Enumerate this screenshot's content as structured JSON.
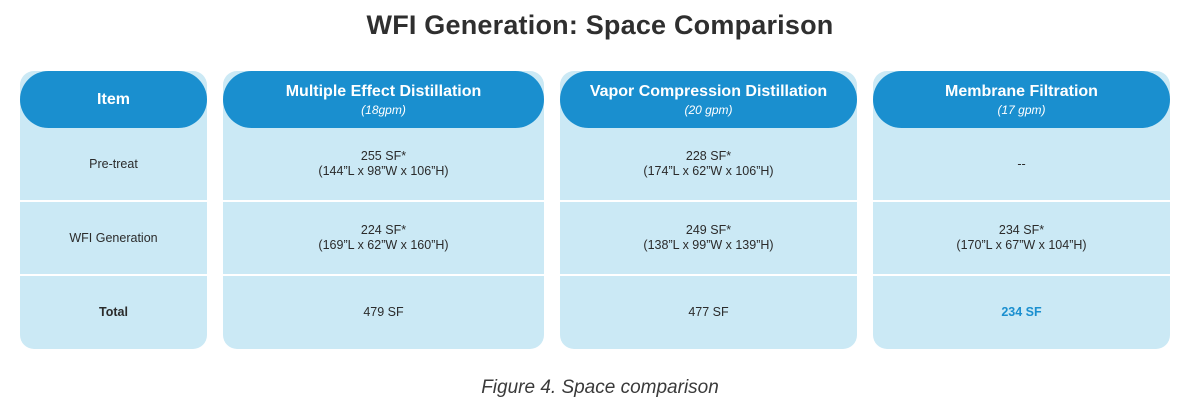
{
  "title": "WFI Generation: Space Comparison",
  "caption": "Figure 4. Space comparison",
  "item_column": {
    "header": "Item",
    "rows": [
      "Pre-treat",
      "WFI Generation",
      "Total"
    ]
  },
  "columns": [
    {
      "name": "Multiple Effect Distillation",
      "sub": "(18gpm)",
      "pretreat": {
        "area": "255 SF*",
        "dims": "(144”L x 98”W x 106”H)"
      },
      "wfi": {
        "area": "224 SF*",
        "dims": "(169”L x 62”W x 160”H)"
      },
      "total": "479 SF"
    },
    {
      "name": "Vapor Compression Distillation",
      "sub": "(20 gpm)",
      "pretreat": {
        "area": "228 SF*",
        "dims": "(174”L x 62”W x 106”H)"
      },
      "wfi": {
        "area": "249 SF*",
        "dims": "(138”L x 99”W x 139”H)"
      },
      "total": "477 SF"
    },
    {
      "name": "Membrane Filtration",
      "sub": "(17 gpm)",
      "pretreat": {
        "area": "--",
        "dims": ""
      },
      "wfi": {
        "area": "234 SF*",
        "dims": "(170”L x 67”W x 104”H)"
      },
      "total": "234 SF"
    }
  ],
  "colors": {
    "header_blue": "#1a8fcf",
    "cell_bg": "#cbe9f5",
    "highlight": "#1a8fcf"
  }
}
